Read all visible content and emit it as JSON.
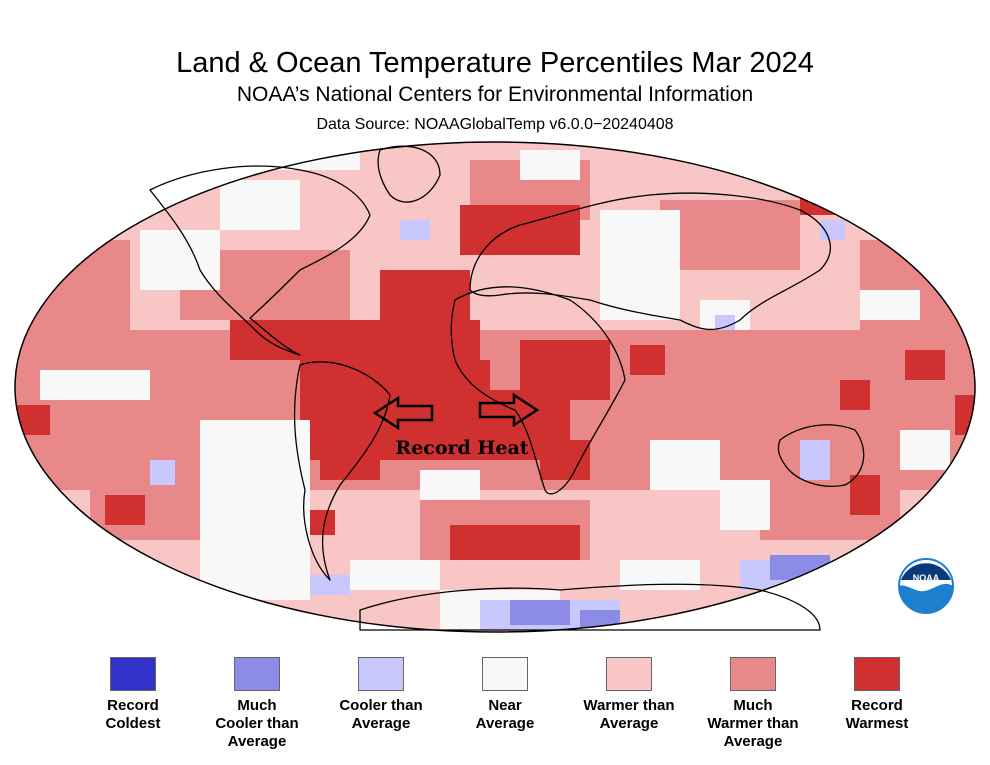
{
  "header": {
    "title": "Land & Ocean Temperature Percentiles Mar 2024",
    "subtitle": "NOAA’s National Centers for Environmental Information",
    "source": "Data Source: NOAAGlobalTemp v6.0.0−20240408"
  },
  "annotation": {
    "text": "Record Heat",
    "arrow_left_icon": "hollow-arrow-left-icon",
    "arrow_right_icon": "hollow-arrow-right-icon"
  },
  "logo": {
    "text": "NOAA",
    "icon": "noaa-logo-icon"
  },
  "colors": {
    "record_coldest": "#3333cc",
    "much_cooler": "#8c8ce6",
    "cooler": "#c8c8ff",
    "near": "#f8f8f8",
    "warmer": "#f9c6c6",
    "much_warmer": "#e88888",
    "record_warmest": "#d03030",
    "coastline": "#000000",
    "noaa_blue": "#1f7fcf"
  },
  "legend": [
    {
      "key": "record_coldest",
      "lines": [
        "Record",
        "Coldest"
      ],
      "color": "#3333cc"
    },
    {
      "key": "much_cooler",
      "lines": [
        "Much",
        "Cooler than",
        "Average"
      ],
      "color": "#8c8ce6"
    },
    {
      "key": "cooler",
      "lines": [
        "Cooler than",
        "Average"
      ],
      "color": "#c8c8ff"
    },
    {
      "key": "near",
      "lines": [
        "Near",
        "Average"
      ],
      "color": "#f8f8f8"
    },
    {
      "key": "warmer",
      "lines": [
        "Warmer than",
        "Average"
      ],
      "color": "#f9c6c6"
    },
    {
      "key": "much_warmer",
      "lines": [
        "Much",
        "Warmer than",
        "Average"
      ],
      "color": "#e88888"
    },
    {
      "key": "record_warmest",
      "lines": [
        "Record",
        "Warmest"
      ],
      "color": "#d03030"
    }
  ]
}
